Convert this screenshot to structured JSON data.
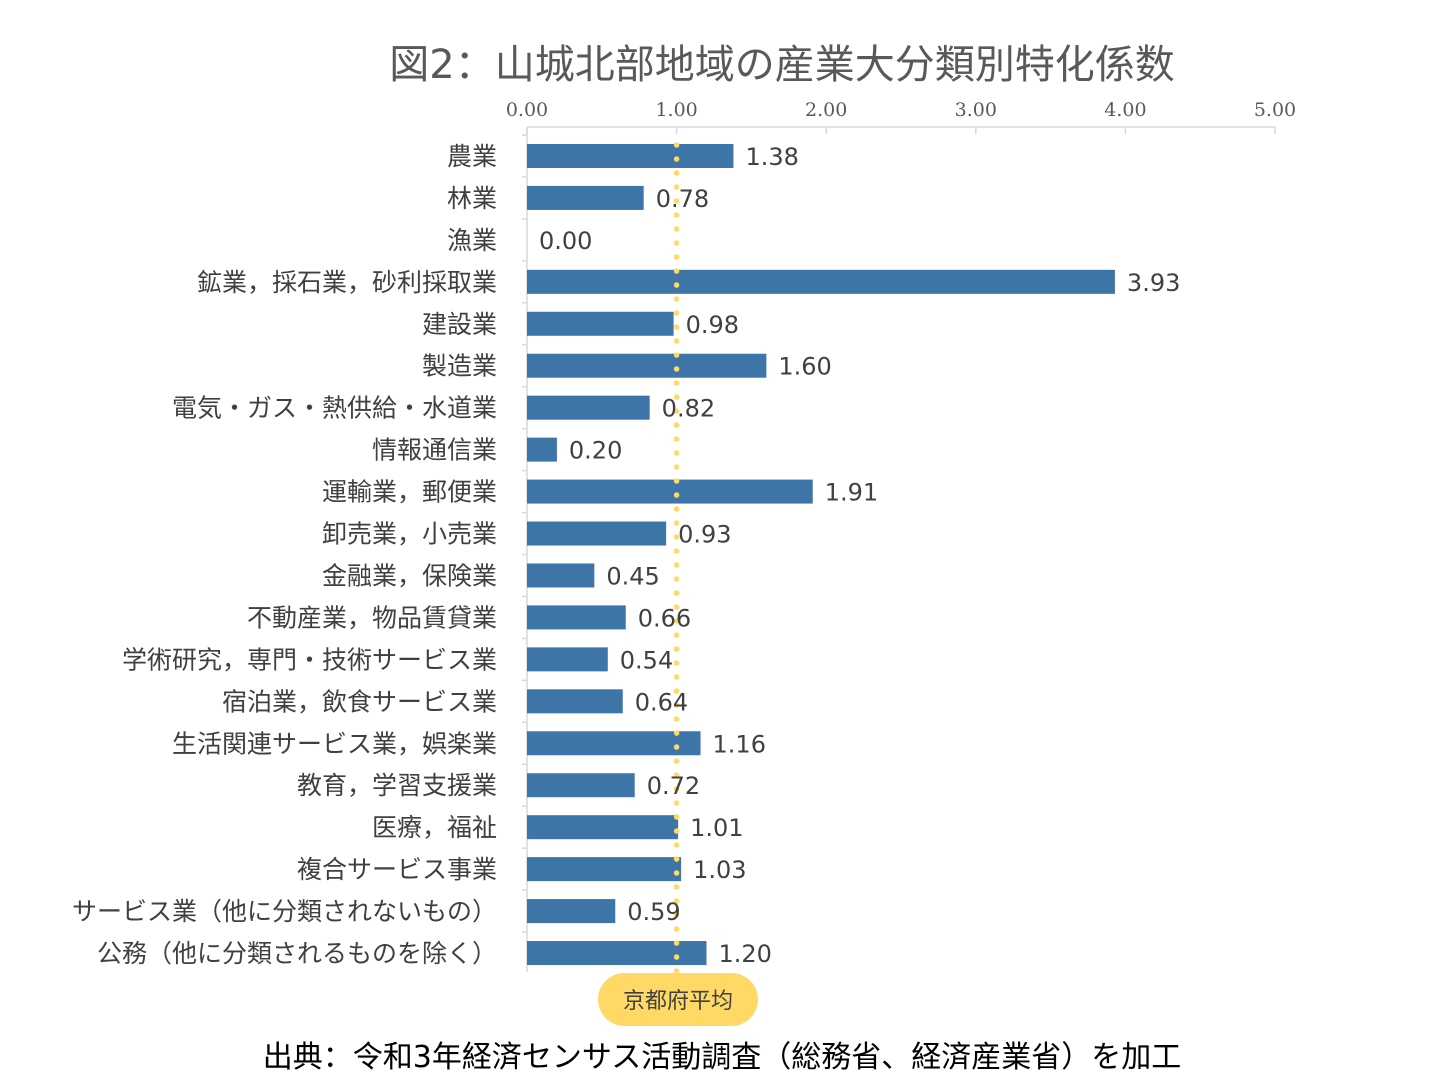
{
  "chart_data": {
    "type": "bar",
    "orientation": "horizontal",
    "title": "図2：山城北部地域の産業大分類別特化係数",
    "categories": [
      "農業",
      "林業",
      "漁業",
      "鉱業，採石業，砂利採取業",
      "建設業",
      "製造業",
      "電気・ガス・熱供給・水道業",
      "情報通信業",
      "運輸業，郵便業",
      "卸売業，小売業",
      "金融業，保険業",
      "不動産業，物品賃貸業",
      "学術研究，専門・技術サービス業",
      "宿泊業，飲食サービス業",
      "生活関連サービス業，娯楽業",
      "教育，学習支援業",
      "医療，福祉",
      "複合サービス事業",
      "サービス業（他に分類されないもの）",
      "公務（他に分類されるものを除く）"
    ],
    "values": [
      1.38,
      0.78,
      0.0,
      3.93,
      0.98,
      1.6,
      0.82,
      0.2,
      1.91,
      0.93,
      0.45,
      0.66,
      0.54,
      0.64,
      1.16,
      0.72,
      1.01,
      1.03,
      0.59,
      1.2
    ],
    "value_labels": [
      "1.38",
      "0.78",
      "0.00",
      "3.93",
      "0.98",
      "1.60",
      "0.82",
      "0.20",
      "1.91",
      "0.93",
      "0.45",
      "0.66",
      "0.54",
      "0.64",
      "1.16",
      "0.72",
      "1.01",
      "1.03",
      "0.59",
      "1.20"
    ],
    "xlim": [
      0,
      5
    ],
    "x_ticks": [
      "0.00",
      "1.00",
      "2.00",
      "3.00",
      "4.00",
      "5.00"
    ],
    "x_axis_position": "top",
    "grid": false,
    "reference_line": {
      "value": 1.0,
      "label": "京都府平均",
      "color": "#FFD966",
      "style": "dotted"
    },
    "bar_color": "#3E75A8"
  },
  "source_note": "出典：令和3年経済センサス活動調査（総務省、経済産業省）を加工"
}
